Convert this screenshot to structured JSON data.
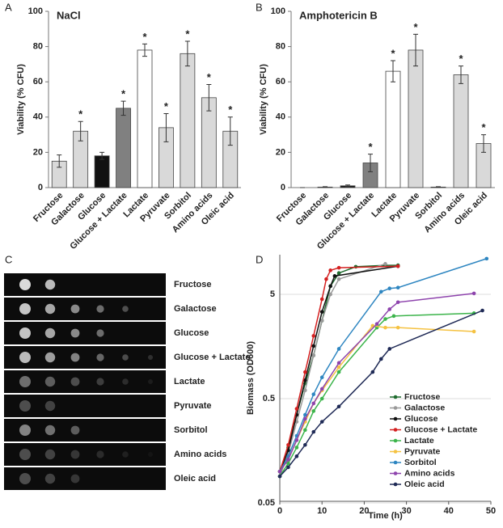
{
  "chart_data": [
    {
      "type": "bar",
      "label": "A",
      "title": "NaCl",
      "y_label": "Viability (% CFU)",
      "categories": [
        "Fructose",
        "Galactose",
        "Glucose",
        "Glucose + Lactate",
        "Lactate",
        "Pyruvate",
        "Sorbitol",
        "Amino acids",
        "Oleic acid"
      ],
      "values": [
        15,
        32,
        18,
        45,
        78,
        34,
        76,
        51,
        32
      ],
      "errors": [
        3.5,
        5.5,
        2,
        4,
        3.5,
        8,
        7,
        7.5,
        8
      ],
      "significance": [
        null,
        "*",
        null,
        "*",
        "*",
        "*",
        "*",
        "*",
        "*"
      ],
      "colors": [
        "#d9d9d9",
        "#d9d9d9",
        "#111111",
        "#808080",
        "#ffffff",
        "#d9d9d9",
        "#d9d9d9",
        "#d9d9d9",
        "#d9d9d9"
      ],
      "ylim": [
        0,
        100
      ],
      "yticks": [
        0,
        20,
        40,
        60,
        80,
        100
      ]
    },
    {
      "type": "bar",
      "label": "B",
      "title": "Amphotericin B",
      "y_label": "Viability (% CFU)",
      "categories": [
        "Fructose",
        "Galactose",
        "Glucose",
        "Glucose + Lactate",
        "Lactate",
        "Pyruvate",
        "Sorbitol",
        "Amino acids",
        "Oleic acid"
      ],
      "values": [
        0,
        0.3,
        1,
        14,
        66,
        78,
        0.3,
        64,
        25
      ],
      "errors": [
        0,
        0.2,
        0.5,
        5,
        6,
        9,
        0.2,
        5,
        5
      ],
      "significance": [
        null,
        null,
        null,
        "*",
        "*",
        "*",
        null,
        "*",
        "*"
      ],
      "colors": [
        "#d9d9d9",
        "#d9d9d9",
        "#111111",
        "#808080",
        "#ffffff",
        "#d9d9d9",
        "#d9d9d9",
        "#d9d9d9",
        "#d9d9d9"
      ],
      "ylim": [
        0,
        100
      ],
      "yticks": [
        0,
        20,
        40,
        60,
        80,
        100
      ]
    },
    {
      "type": "line",
      "label": "D",
      "x_label": "Time (h)",
      "y_label": "Biomass (OD600)",
      "log_y": true,
      "grid": true,
      "legend": "lower right",
      "xlim": [
        0,
        50
      ],
      "xticks": [
        0,
        10,
        20,
        30,
        40,
        50
      ],
      "ylim": [
        0.05,
        12
      ],
      "yticks": [
        0.05,
        0.5,
        5
      ],
      "series": [
        {
          "name": "Fructose",
          "color": "#1e6b2e",
          "x": [
            0,
            1,
            2,
            4,
            6,
            8,
            10,
            12,
            14,
            18,
            25,
            28
          ],
          "values": [
            0.1,
            0.12,
            0.17,
            0.35,
            0.7,
            1.3,
            2.8,
            6,
            8,
            9.2,
            9.5,
            9.5
          ]
        },
        {
          "name": "Galactose",
          "color": "#999999",
          "x": [
            0,
            2,
            4,
            6,
            8,
            10,
            12,
            14,
            25
          ],
          "values": [
            0.09,
            0.15,
            0.3,
            0.6,
            1.3,
            2.8,
            5,
            7,
            9.8
          ]
        },
        {
          "name": "Glucose",
          "color": "#111111",
          "x": [
            0,
            2,
            4,
            6,
            8,
            10,
            12,
            13,
            28
          ],
          "values": [
            0.1,
            0.16,
            0.35,
            0.75,
            1.6,
            3.4,
            6,
            7.5,
            9.3
          ]
        },
        {
          "name": "Glucose + Lactate",
          "color": "#d42020",
          "x": [
            0,
            2,
            4,
            6,
            8,
            10,
            11,
            12,
            14,
            28
          ],
          "values": [
            0.1,
            0.18,
            0.4,
            0.9,
            2,
            4.5,
            7,
            8.5,
            9,
            9.3
          ]
        },
        {
          "name": "Lactate",
          "color": "#3cb44b",
          "x": [
            0,
            2,
            4,
            6,
            8,
            10,
            14,
            23,
            25,
            27,
            46
          ],
          "values": [
            0.09,
            0.12,
            0.17,
            0.25,
            0.38,
            0.5,
            0.9,
            2.4,
            2.9,
            3.1,
            3.3
          ]
        },
        {
          "name": "Pyruvate",
          "color": "#f5c242",
          "x": [
            0,
            2,
            4,
            6,
            8,
            10,
            14,
            22,
            25,
            28,
            46
          ],
          "values": [
            0.1,
            0.13,
            0.2,
            0.3,
            0.45,
            0.6,
            1.0,
            2.5,
            2.4,
            2.4,
            2.2
          ]
        },
        {
          "name": "Sorbitol",
          "color": "#2e86c1",
          "x": [
            0,
            2,
            4,
            6,
            8,
            10,
            14,
            24,
            26,
            28,
            49
          ],
          "values": [
            0.1,
            0.14,
            0.22,
            0.35,
            0.55,
            0.8,
            1.5,
            5.3,
            5.7,
            5.8,
            11
          ]
        },
        {
          "name": "Amino acids",
          "color": "#8e44ad",
          "x": [
            0,
            2,
            4,
            6,
            8,
            10,
            14,
            23,
            26,
            28,
            46
          ],
          "values": [
            0.1,
            0.13,
            0.2,
            0.32,
            0.45,
            0.62,
            1.1,
            2.6,
            3.6,
            4.2,
            5.1
          ]
        },
        {
          "name": "Oleic acid",
          "color": "#1f2a56",
          "x": [
            0,
            2,
            4,
            6,
            8,
            10,
            14,
            22,
            24,
            26,
            48
          ],
          "values": [
            0.09,
            0.11,
            0.14,
            0.18,
            0.24,
            0.3,
            0.42,
            0.9,
            1.2,
            1.5,
            3.5
          ]
        }
      ]
    }
  ],
  "spot_assay": {
    "label": "C",
    "rows": [
      "Fructose",
      "Galactose",
      "Glucose",
      "Glucose + Lactate",
      "Lactate",
      "Pyruvate",
      "Sorbitol",
      "Amino acids",
      "Oleic acid"
    ]
  }
}
